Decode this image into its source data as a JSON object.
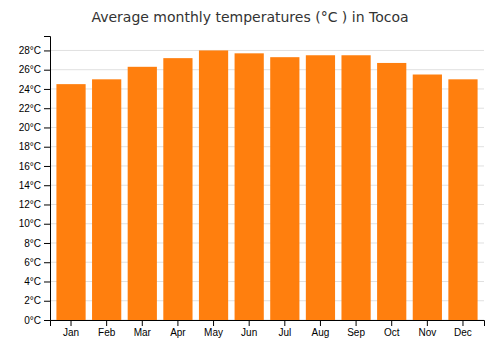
{
  "chart_data": {
    "type": "bar",
    "title": "Average monthly temperatures (°C ) in Tocoa",
    "categories": [
      "Jan",
      "Feb",
      "Mar",
      "Apr",
      "May",
      "Jun",
      "Jul",
      "Aug",
      "Sep",
      "Oct",
      "Nov",
      "Dec"
    ],
    "values": [
      24.5,
      25.0,
      26.3,
      27.2,
      28.0,
      27.7,
      27.3,
      27.5,
      27.5,
      26.7,
      25.5,
      25.0
    ],
    "ylim": [
      0,
      29.5
    ],
    "yticks": [
      {
        "value": 0,
        "label": "0°C"
      },
      {
        "value": 2,
        "label": "2°C"
      },
      {
        "value": 4,
        "label": "4°C"
      },
      {
        "value": 6,
        "label": "6°C"
      },
      {
        "value": 8,
        "label": "8°C"
      },
      {
        "value": 10,
        "label": "10°C"
      },
      {
        "value": 12,
        "label": "12°C"
      },
      {
        "value": 14,
        "label": "14°C"
      },
      {
        "value": 16,
        "label": "16°C"
      },
      {
        "value": 18,
        "label": "18°C"
      },
      {
        "value": 20,
        "label": "20°C"
      },
      {
        "value": 22,
        "label": "22°C"
      },
      {
        "value": 24,
        "label": "24°C"
      },
      {
        "value": 26,
        "label": "26°C"
      },
      {
        "value": 28,
        "label": "28°C"
      }
    ],
    "grid": true
  }
}
